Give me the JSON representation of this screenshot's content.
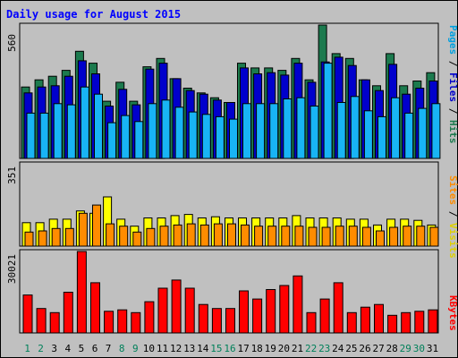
{
  "chart_data": {
    "type": "bar",
    "title": "Daily usage for August 2015",
    "categories": [
      "1",
      "2",
      "3",
      "4",
      "5",
      "6",
      "7",
      "8",
      "9",
      "10",
      "11",
      "12",
      "13",
      "14",
      "15",
      "16",
      "17",
      "18",
      "19",
      "20",
      "21",
      "22",
      "23",
      "24",
      "25",
      "26",
      "27",
      "28",
      "29",
      "30",
      "31"
    ],
    "weekend_days": [
      "1",
      "2",
      "8",
      "9",
      "15",
      "16",
      "22",
      "23",
      "29",
      "30"
    ],
    "panels": [
      {
        "id": "top",
        "ylabel_parts": [
          "Pages",
          "Files",
          "Hits"
        ],
        "max_label": "560",
        "ylim": [
          0,
          560
        ],
        "series": [
          {
            "name": "Hits",
            "color": "#1c7a4e",
            "values": [
              300,
              330,
              345,
              370,
              450,
              400,
              240,
              320,
              240,
              385,
              420,
              335,
              295,
              275,
              255,
              235,
              400,
              380,
              380,
              370,
              420,
              330,
              560,
              440,
              420,
              330,
              305,
              440,
              305,
              325,
              360
            ]
          },
          {
            "name": "Files",
            "color": "#0000cc",
            "values": [
              275,
              300,
              305,
              345,
              410,
              355,
              220,
              290,
              225,
              375,
              400,
              335,
              285,
              270,
              245,
              235,
              380,
              355,
              360,
              350,
              400,
              320,
              405,
              425,
              390,
              330,
              285,
              395,
              270,
              295,
              325
            ]
          },
          {
            "name": "Pages",
            "color": "#18b4f5",
            "values": [
              190,
              190,
              230,
              225,
              300,
              270,
              150,
              180,
              155,
              230,
              245,
              215,
              195,
              185,
              175,
              165,
              230,
              230,
              230,
              250,
              255,
              220,
              400,
              235,
              260,
              200,
              175,
              255,
              190,
              210,
              230
            ]
          }
        ]
      },
      {
        "id": "middle",
        "ylabel_parts": [
          "Sites",
          "Visits"
        ],
        "max_label": "351",
        "ylim": [
          0,
          351
        ],
        "series": [
          {
            "name": "Visits",
            "color": "#ffff00",
            "values": [
              100,
              100,
              115,
              115,
              150,
              140,
              210,
              115,
              85,
              120,
              120,
              130,
              135,
              120,
              125,
              120,
              120,
              120,
              120,
              120,
              130,
              120,
              120,
              120,
              115,
              115,
              90,
              115,
              115,
              110,
              90
            ]
          },
          {
            "name": "Sites",
            "color": "#ff8c00",
            "values": [
              60,
              65,
              75,
              75,
              140,
              175,
              95,
              85,
              60,
              75,
              85,
              90,
              95,
              90,
              95,
              95,
              90,
              85,
              85,
              85,
              85,
              80,
              80,
              85,
              85,
              80,
              65,
              80,
              85,
              85,
              80
            ]
          }
        ]
      },
      {
        "id": "bottom",
        "ylabel_parts": [
          "KBytes"
        ],
        "max_label": "30021",
        "ylim": [
          0,
          30021
        ],
        "series": [
          {
            "name": "KBytes",
            "color": "#ff0000",
            "values": [
              14000,
              9000,
              7500,
              15000,
              30021,
              18500,
              8000,
              8500,
              7500,
              11500,
              16500,
              19500,
              16500,
              10500,
              9000,
              9000,
              15500,
              12500,
              16000,
              17500,
              21000,
              7500,
              12500,
              18500,
              7500,
              9500,
              10500,
              6500,
              7500,
              8000,
              8500
            ]
          }
        ]
      }
    ]
  }
}
